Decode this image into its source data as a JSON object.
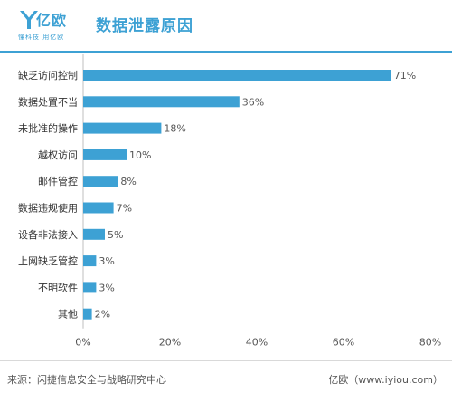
{
  "header": {
    "logo_text": "亿欧",
    "logo_slogan": "懂科技 用亿欧",
    "title": "数据泄露原因"
  },
  "colors": {
    "accent": "#3da1d4",
    "bar": "#3da1d4"
  },
  "chart_data": {
    "type": "bar",
    "orientation": "horizontal",
    "title": "数据泄露原因",
    "categories": [
      "缺乏访问控制",
      "数据处置不当",
      "未批准的操作",
      "越权访问",
      "邮件管控",
      "数据违规使用",
      "设备非法接入",
      "上网缺乏管控",
      "不明软件",
      "其他"
    ],
    "values": [
      71,
      36,
      18,
      10,
      8,
      7,
      5,
      3,
      3,
      2
    ],
    "value_labels": [
      "71%",
      "36%",
      "18%",
      "10%",
      "8%",
      "7%",
      "5%",
      "3%",
      "3%",
      "2%"
    ],
    "xlim": [
      0,
      80
    ],
    "xticks": [
      0,
      20,
      40,
      60,
      80
    ],
    "xtick_labels": [
      "0%",
      "20%",
      "40%",
      "60%",
      "80%"
    ],
    "grid": false,
    "legend": "none"
  },
  "footer": {
    "source": "来源：闪捷信息安全与战略研究中心",
    "site": "亿欧（www.iyiou.com）"
  }
}
